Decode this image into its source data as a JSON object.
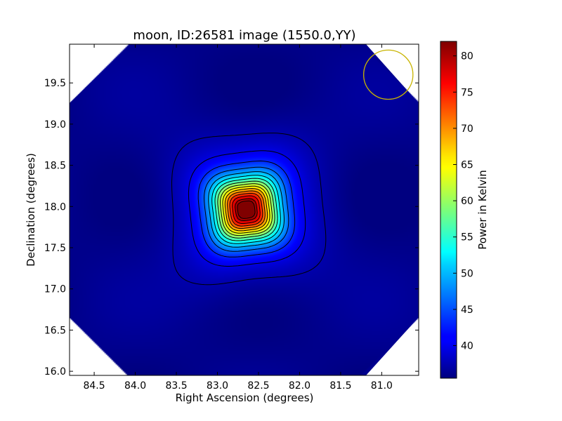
{
  "chart_data": {
    "type": "heatmap",
    "title": "moon, ID:26581 image (1550.0,YY)",
    "xlabel": "Right Ascension (degrees)",
    "ylabel": "Declination (degrees)",
    "colorbar_label": "Power in Kelvin",
    "colormap": "jet",
    "x_axis": {
      "range": [
        84.8,
        80.55
      ],
      "inverted": true,
      "ticks": [
        84.5,
        84.0,
        83.5,
        83.0,
        82.5,
        82.0,
        81.5,
        81.0
      ],
      "tick_labels": [
        "84.5",
        "84.0",
        "83.5",
        "83.0",
        "82.5",
        "82.0",
        "81.5",
        "81.0"
      ]
    },
    "y_axis": {
      "range": [
        15.95,
        19.97
      ],
      "ticks": [
        16.0,
        16.5,
        17.0,
        17.5,
        18.0,
        18.5,
        19.0,
        19.5
      ],
      "tick_labels": [
        "16.0",
        "16.5",
        "17.0",
        "17.5",
        "18.0",
        "18.5",
        "19.0",
        "19.5"
      ]
    },
    "colorbar": {
      "range": [
        35.5,
        82
      ],
      "ticks": [
        40,
        45,
        50,
        55,
        60,
        65,
        70,
        75,
        80
      ],
      "tick_labels": [
        "40",
        "45",
        "50",
        "55",
        "60",
        "65",
        "70",
        "75",
        "80"
      ]
    },
    "source": {
      "ra": 82.65,
      "dec": 17.96,
      "peak": 82,
      "background": 36
    },
    "beam_circle": {
      "ra": 80.92,
      "dec": 19.6,
      "radius_deg": 0.3,
      "color": "#c8b400"
    },
    "contour_levels": [
      37.5,
      40,
      43,
      46,
      49,
      52,
      55,
      58,
      61,
      64,
      67,
      70,
      73,
      76,
      79,
      81
    ],
    "grid": false,
    "coverage": "rotated square footprint, white outside"
  },
  "colors": {
    "contour": "#000000",
    "background": "#ffffff",
    "beam_circle": "#c8b400"
  }
}
